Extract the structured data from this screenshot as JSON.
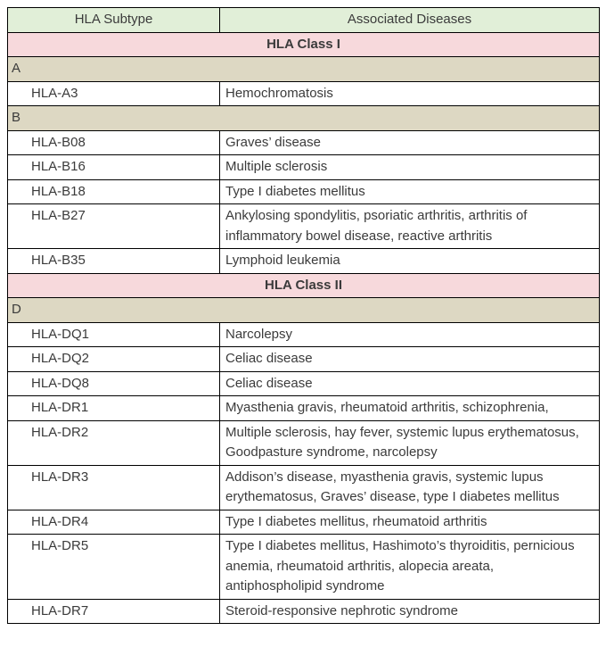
{
  "colors": {
    "header_bg": "#e1efd8",
    "class_bg": "#f7d9dc",
    "group_bg": "#ddd8c3",
    "border": "#000000",
    "text": "#3b3b3b"
  },
  "table": {
    "columns": {
      "subtype": "HLA Subtype",
      "diseases": "Associated Diseases"
    },
    "sections": [
      {
        "class_label": "HLA Class I",
        "groups": [
          {
            "group_label": "A",
            "rows": [
              {
                "subtype": "HLA-A3",
                "diseases": "Hemochromatosis"
              }
            ]
          },
          {
            "group_label": "B",
            "rows": [
              {
                "subtype": "HLA-B08",
                "diseases": "Graves’ disease"
              },
              {
                "subtype": "HLA-B16",
                "diseases": "Multiple sclerosis"
              },
              {
                "subtype": "HLA-B18",
                "diseases": "Type I diabetes mellitus"
              },
              {
                "subtype": "HLA-B27",
                "diseases": "Ankylosing spondylitis, psoriatic arthritis, arthritis of inflammatory bowel disease, reactive arthritis"
              },
              {
                "subtype": "HLA-B35",
                "diseases": "Lymphoid leukemia"
              }
            ]
          }
        ]
      },
      {
        "class_label": "HLA Class II",
        "groups": [
          {
            "group_label": "D",
            "rows": [
              {
                "subtype": "HLA-DQ1",
                "diseases": "Narcolepsy"
              },
              {
                "subtype": "HLA-DQ2",
                "diseases": "Celiac disease"
              },
              {
                "subtype": "HLA-DQ8",
                "diseases": "Celiac disease"
              },
              {
                "subtype": "HLA-DR1",
                "diseases": "Myasthenia gravis, rheumatoid arthritis, schizophrenia,"
              },
              {
                "subtype": "HLA-DR2",
                "diseases": "Multiple sclerosis, hay fever, systemic lupus erythematosus, Goodpasture syndrome, narcolepsy"
              },
              {
                "subtype": "HLA-DR3",
                "diseases": "Addison’s disease, myasthenia gravis, systemic lupus erythematosus, Graves’ disease, type I diabetes mellitus"
              },
              {
                "subtype": "HLA-DR4",
                "diseases": "Type I diabetes mellitus, rheumatoid arthritis"
              },
              {
                "subtype": "HLA-DR5",
                "diseases": "Type I diabetes mellitus, Hashimoto’s thyroiditis, pernicious anemia, rheumatoid arthritis, alopecia areata,  antiphospholipid syndrome"
              },
              {
                "subtype": "HLA-DR7",
                "diseases": "Steroid-responsive nephrotic syndrome"
              }
            ]
          }
        ]
      }
    ]
  }
}
